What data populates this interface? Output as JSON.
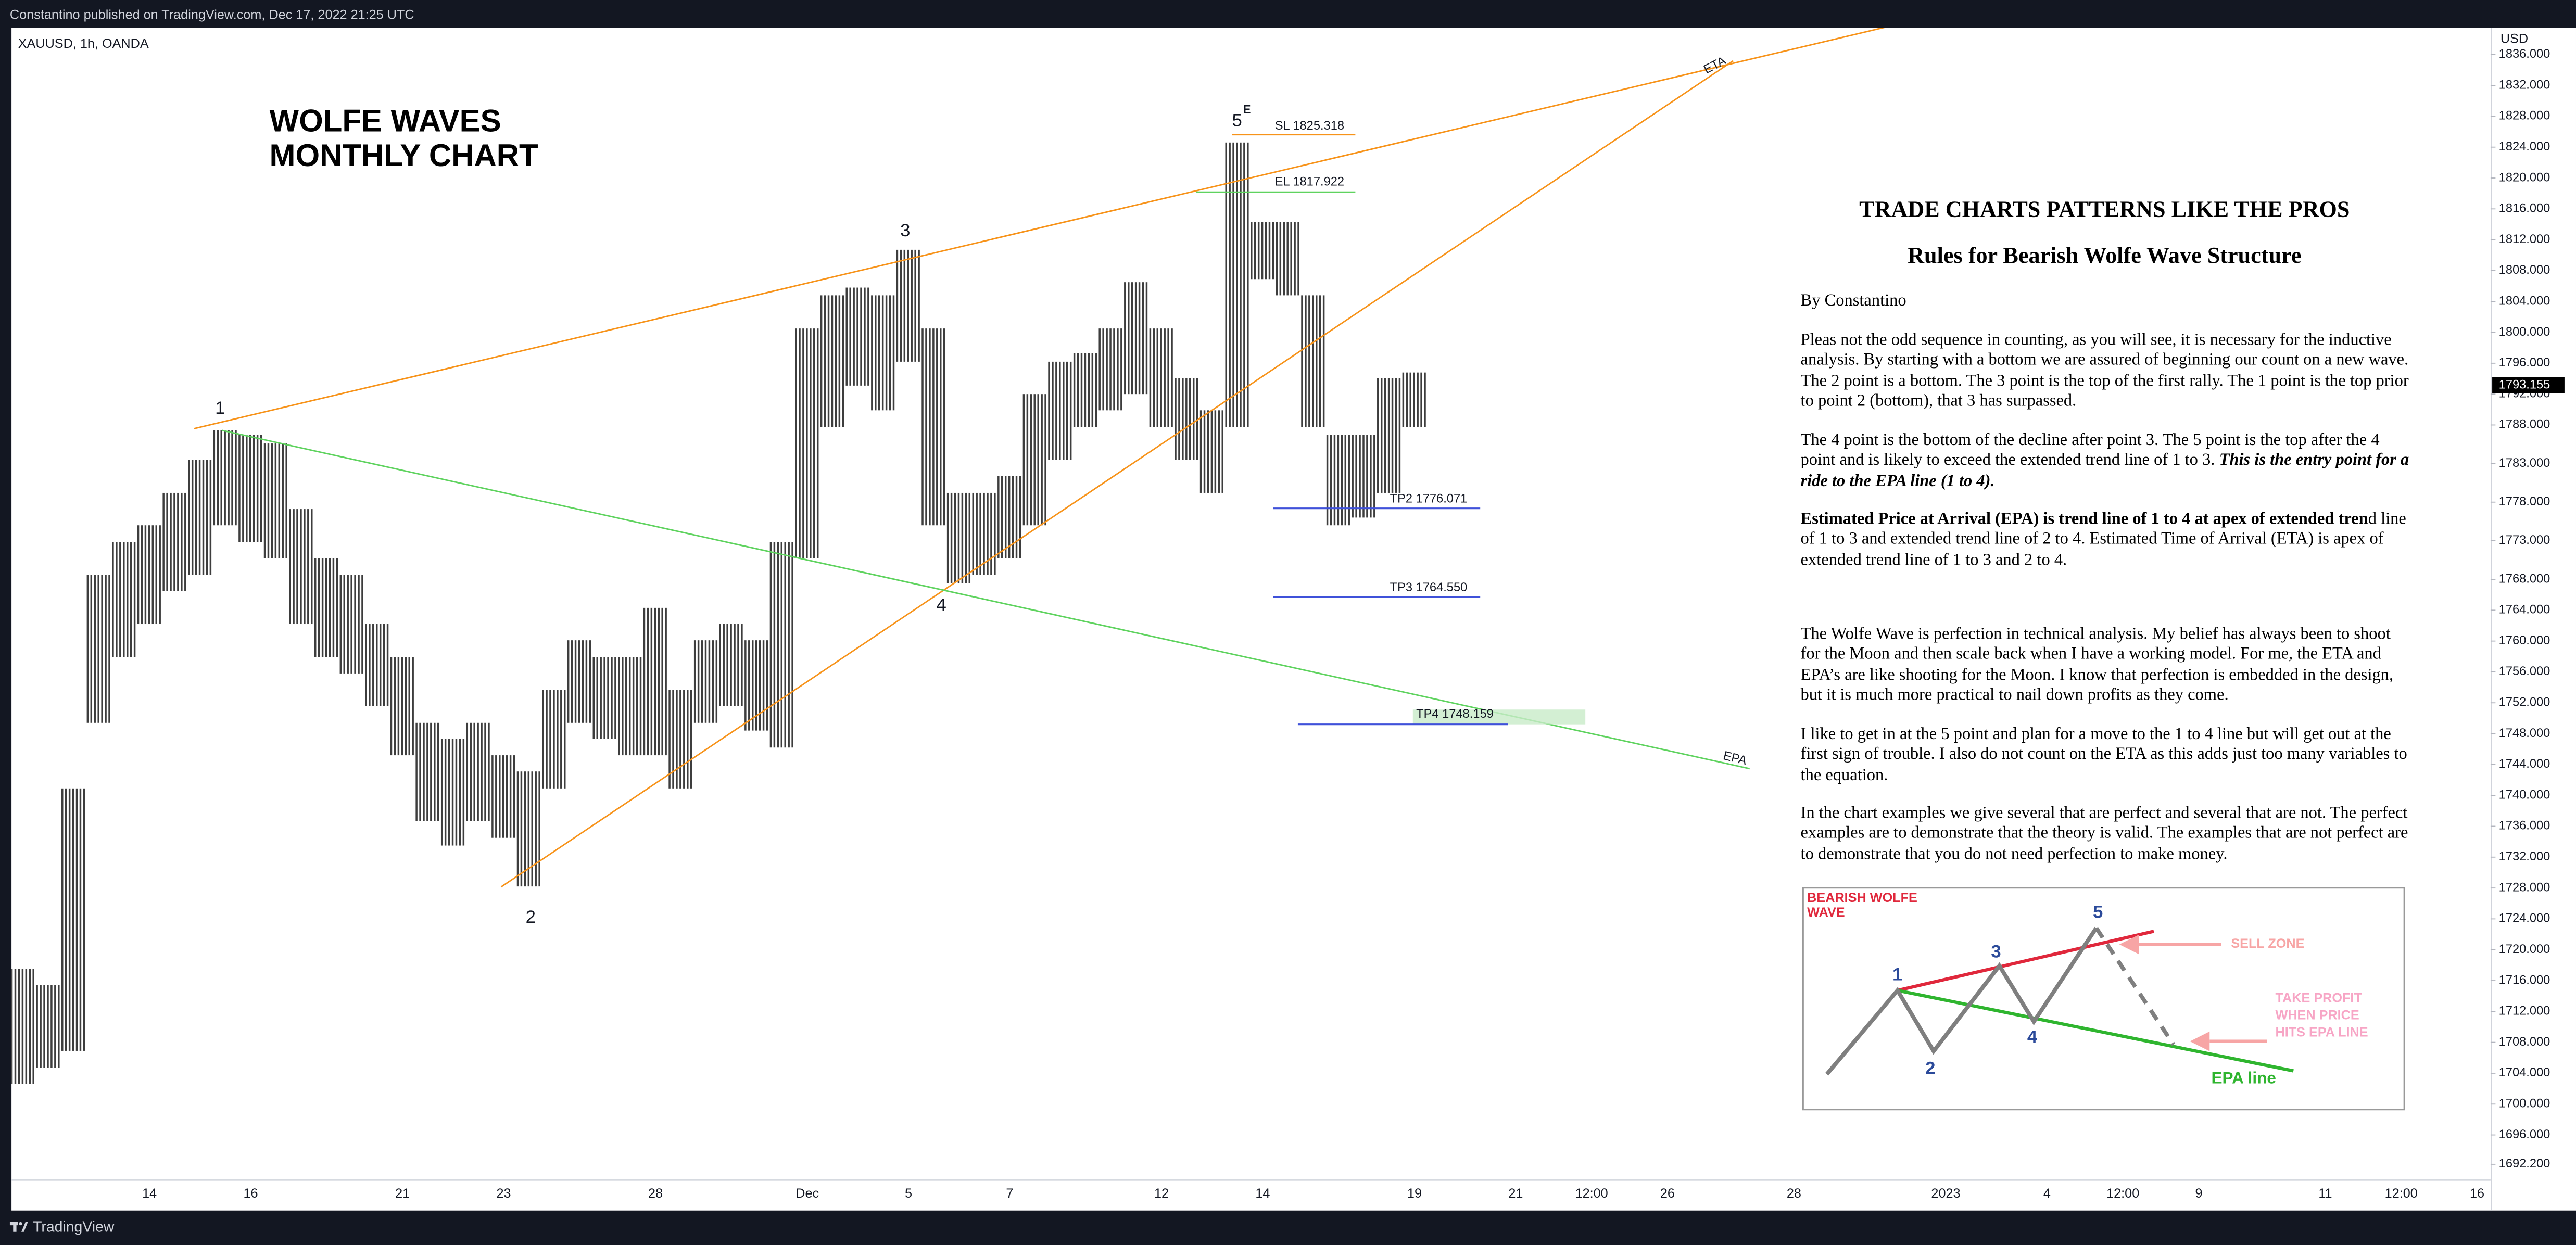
{
  "header": {
    "publisher": "Constantino published on TradingView.com, Dec 17, 2022 21:25 UTC",
    "symbol": "XAUUSD, 1h, OANDA",
    "currency": "USD"
  },
  "footer": {
    "brand": "TradingView"
  },
  "chart_data": {
    "type": "candlestick",
    "title": [
      "WOLFE WAVES",
      "MONTHLY CHART"
    ],
    "categories": [
      null,
      null,
      null,
      null,
      null,
      "14",
      null,
      null,
      null,
      "16",
      null,
      null,
      null,
      null,
      null,
      "21",
      null,
      null,
      null,
      "23",
      null,
      null,
      null,
      null,
      null,
      "28",
      null,
      null,
      null,
      null,
      null,
      "Dec",
      null,
      null,
      null,
      "5",
      null,
      null,
      null,
      "7",
      null,
      null,
      null,
      null,
      null,
      "12",
      null,
      null,
      null,
      "14",
      null,
      null,
      null,
      null,
      null,
      "19",
      null,
      null,
      null,
      "21",
      null,
      null,
      "12:00",
      null,
      null,
      "26",
      null,
      null,
      null,
      null,
      "28",
      null,
      null,
      null,
      null,
      null,
      "2023",
      null,
      null,
      null,
      "4",
      null,
      null,
      "12:00",
      null,
      null,
      "9",
      null,
      null,
      null,
      null,
      "11",
      null,
      null,
      "12:00",
      null,
      null,
      "16"
    ],
    "series": [
      {
        "color": "#3d3d3d",
        "high": [
          1717.5,
          1715.4,
          1740.9,
          1768.6,
          1772.8,
          1775.0,
          1779.2,
          1783.5,
          1787.3,
          1786.7,
          1785.6,
          1777.1,
          1770.7,
          1768.6,
          1762.2,
          1757.9,
          1749.4,
          1747.3,
          1749.4,
          1745.2,
          1743.1,
          1753.7,
          1760.1,
          1757.9,
          1757.9,
          1764.3,
          1753.7,
          1760.1,
          1762.2,
          1760.1,
          1772.8,
          1800.5,
          1804.8,
          1805.8,
          1804.8,
          1810.7,
          1800.5,
          1779.2,
          1779.2,
          1781.4,
          1792.0,
          1796.2,
          1797.3,
          1800.5,
          1806.5,
          1800.5,
          1794.1,
          1789.9,
          1824.6,
          1814.3,
          1814.3,
          1804.8,
          1786.7,
          1786.7,
          1794.1,
          1794.8,
          null,
          null,
          null,
          null,
          null,
          null,
          null,
          null,
          null,
          null,
          null,
          null,
          null,
          null,
          null,
          null,
          null,
          null,
          null,
          null,
          null,
          null,
          null,
          null,
          null,
          null,
          null,
          null,
          null,
          null,
          null,
          null,
          null,
          null,
          null,
          null,
          null,
          null,
          null,
          null,
          null,
          null
        ],
        "low": [
          1702.6,
          1704.7,
          1706.9,
          1749.4,
          1757.9,
          1762.2,
          1766.5,
          1768.6,
          1775.0,
          1772.8,
          1770.7,
          1762.2,
          1757.9,
          1755.8,
          1751.6,
          1745.2,
          1736.7,
          1733.5,
          1736.7,
          1734.5,
          1728.2,
          1740.9,
          1749.4,
          1747.3,
          1745.2,
          1745.2,
          1740.9,
          1749.4,
          1751.6,
          1748.4,
          1746.2,
          1770.7,
          1787.7,
          1793.1,
          1789.9,
          1796.2,
          1775.0,
          1767.5,
          1768.6,
          1770.7,
          1775.0,
          1783.5,
          1787.7,
          1789.9,
          1792.0,
          1787.7,
          1783.5,
          1779.2,
          1787.7,
          1806.9,
          1804.8,
          1787.7,
          1775.0,
          1776.0,
          1779.2,
          1787.7,
          null,
          null,
          null,
          null,
          null,
          null,
          null,
          null,
          null,
          null,
          null,
          null,
          null,
          null,
          null,
          null,
          null,
          null,
          null,
          null,
          null,
          null,
          null,
          null,
          null,
          null,
          null,
          null,
          null,
          null,
          null,
          null,
          null,
          null,
          null,
          null,
          null,
          null,
          null,
          null,
          null,
          null
        ]
      }
    ],
    "ylim": [
      1690.253,
      1839.449
    ],
    "yticks": [
      {
        "value": 1836,
        "label": "1836.000"
      },
      {
        "value": 1832,
        "label": "1832.000"
      },
      {
        "value": 1828,
        "label": "1828.000"
      },
      {
        "value": 1824,
        "label": "1824.000"
      },
      {
        "value": 1820,
        "label": "1820.000"
      },
      {
        "value": 1816,
        "label": "1816.000"
      },
      {
        "value": 1812,
        "label": "1812.000"
      },
      {
        "value": 1808,
        "label": "1808.000"
      },
      {
        "value": 1804,
        "label": "1804.000"
      },
      {
        "value": 1800,
        "label": "1800.000"
      },
      {
        "value": 1796,
        "label": "1796.000"
      },
      {
        "value": 1792,
        "label": "1792.000"
      },
      {
        "value": 1788,
        "label": "1788.000"
      },
      {
        "value": 1783,
        "label": "1783.000"
      },
      {
        "value": 1778,
        "label": "1778.000"
      },
      {
        "value": 1773,
        "label": "1773.000"
      },
      {
        "value": 1768,
        "label": "1768.000"
      },
      {
        "value": 1764,
        "label": "1764.000"
      },
      {
        "value": 1760,
        "label": "1760.000"
      },
      {
        "value": 1756,
        "label": "1756.000"
      },
      {
        "value": 1752,
        "label": "1752.000"
      },
      {
        "value": 1748,
        "label": "1748.000"
      },
      {
        "value": 1744,
        "label": "1744.000"
      },
      {
        "value": 1740,
        "label": "1740.000"
      },
      {
        "value": 1736,
        "label": "1736.000"
      },
      {
        "value": 1732,
        "label": "1732.000"
      },
      {
        "value": 1728,
        "label": "1728.000"
      },
      {
        "value": 1724,
        "label": "1724.000"
      },
      {
        "value": 1720,
        "label": "1720.000"
      },
      {
        "value": 1716,
        "label": "1716.000"
      },
      {
        "value": 1712,
        "label": "1712.000"
      },
      {
        "value": 1708,
        "label": "1708.000"
      },
      {
        "value": 1704,
        "label": "1704.000"
      },
      {
        "value": 1700,
        "label": "1700.000"
      },
      {
        "value": 1696,
        "label": "1696.000"
      },
      {
        "value": 1692.2,
        "label": "1692.200"
      }
    ],
    "last_price": 1793.155,
    "wave_labels": [
      "1",
      "2",
      "3",
      "4",
      "5"
    ],
    "wave_tag": "E",
    "trendline_labels": [
      "ETA",
      "EPA"
    ],
    "levels": [
      "SL 1825.318",
      "EL 1817.922",
      "TP2 1776.071",
      "TP3 1764.550",
      "TP4 1748.159"
    ]
  },
  "article": {
    "heading": "TRADE CHARTS PATTERNS LIKE THE PROS",
    "subheading": "Rules for Bearish Wolfe Wave Structure",
    "byline": "By Constantino",
    "paragraphs": [
      {
        "text": "Pleas not the odd sequence in counting, as you will see, it is necessary for the inductive analysis. By starting with a bottom we are assured of beginning our count on a new wave. The 2 point is a bottom. The 3 point is the top of the first rally. The 1 point is the top prior to point 2 (bottom), that 3 has surpassed."
      },
      {
        "text": "The 4 point is the bottom of the decline after point 3. The 5 point is the top after the 4 point and is likely to exceed the extended trend line of 1 to 3.",
        "emphasis": "This is the entry point for a ride to the EPA line (1 to 4)."
      },
      {
        "strong": "Estimated Price at Arrival (EPA) is trend line of 1 to 4 at apex of extended tren",
        "text": "d line of 1 to 3 and extended trend line of 2 to 4. Estimated Time of Arrival (ETA) is apex of extended trend line of 1 to 3 and 2 to 4."
      },
      {
        "text": "The Wolfe Wave is perfection in technical analysis. My belief has always been to shoot for the Moon and then scale back when I have a working model. For me, the ETA and EPA’s are like shooting for the Moon. I know that perfection is embedded in the design, but it is much more practical to nail down profits as they come."
      },
      {
        "text": "I like to get in at the 5 point and plan for a move to the 1 to 4 line but will get out at the first sign of trouble. I also do not count on the ETA as this adds just too many variables to the equation."
      },
      {
        "text": "In the chart examples we give several that are perfect and several that are not. The perfect examples are to demonstrate that the theory is valid. The examples that are not perfect are to demonstrate that you do not need perfection to make money."
      }
    ]
  },
  "inset": {
    "title": [
      "BEARISH WOLFE",
      "WAVE"
    ],
    "points": [
      "1",
      "2",
      "3",
      "4",
      "5"
    ],
    "sell_zone": "SELL ZONE",
    "take_profit": [
      "TAKE PROFIT",
      "WHEN PRICE",
      "HITS EPA LINE"
    ],
    "epa_line": "EPA line"
  }
}
